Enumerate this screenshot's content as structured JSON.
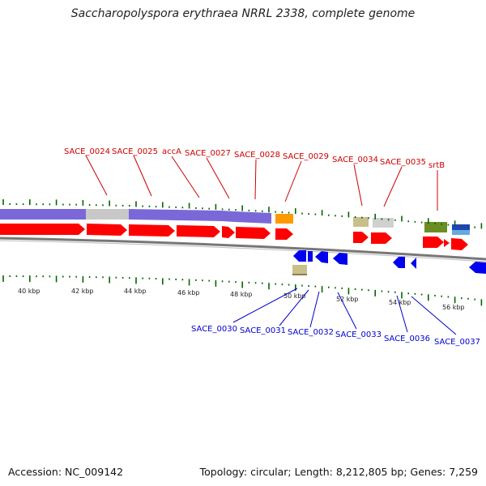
{
  "title": "Saccharopolyspora erythraea NRRL 2338, complete genome",
  "accession": "Accession: NC_009142",
  "topology": "Topology: circular; Length: 8,212,805 bp; Genes: 7,259",
  "colors": {
    "forward_gene": "#ff0000",
    "reverse_gene": "#0000ee",
    "feature_band": "#7b68d8",
    "gray_band": "#c8c8c8",
    "top_label": "#cc0000",
    "bottom_label": "#0000cc",
    "tick": "#006600",
    "backbone": "#777777",
    "orange": "#ff9900",
    "khaki": "#c8c08a",
    "olive": "#6b8e23",
    "blue_band": "#3366cc",
    "light_gray": "#d0d0d0"
  },
  "kbp_labels": [
    "40 kbp",
    "42 kbp",
    "44 kbp",
    "46 kbp",
    "48 kbp",
    "50 kbp",
    "52 kbp",
    "54 kbp",
    "56 kbp"
  ],
  "top_gene_labels": [
    "SACE_0024",
    "SACE_0025",
    "accA",
    "SACE_0027",
    "SACE_0028",
    "SACE_0029",
    "SACE_0034",
    "SACE_0035",
    "srtB"
  ],
  "bottom_gene_labels": [
    "SACE_0030",
    "SACE_0031",
    "SACE_0032",
    "SACE_0033",
    "SACE_0036",
    "SACE_0037"
  ]
}
